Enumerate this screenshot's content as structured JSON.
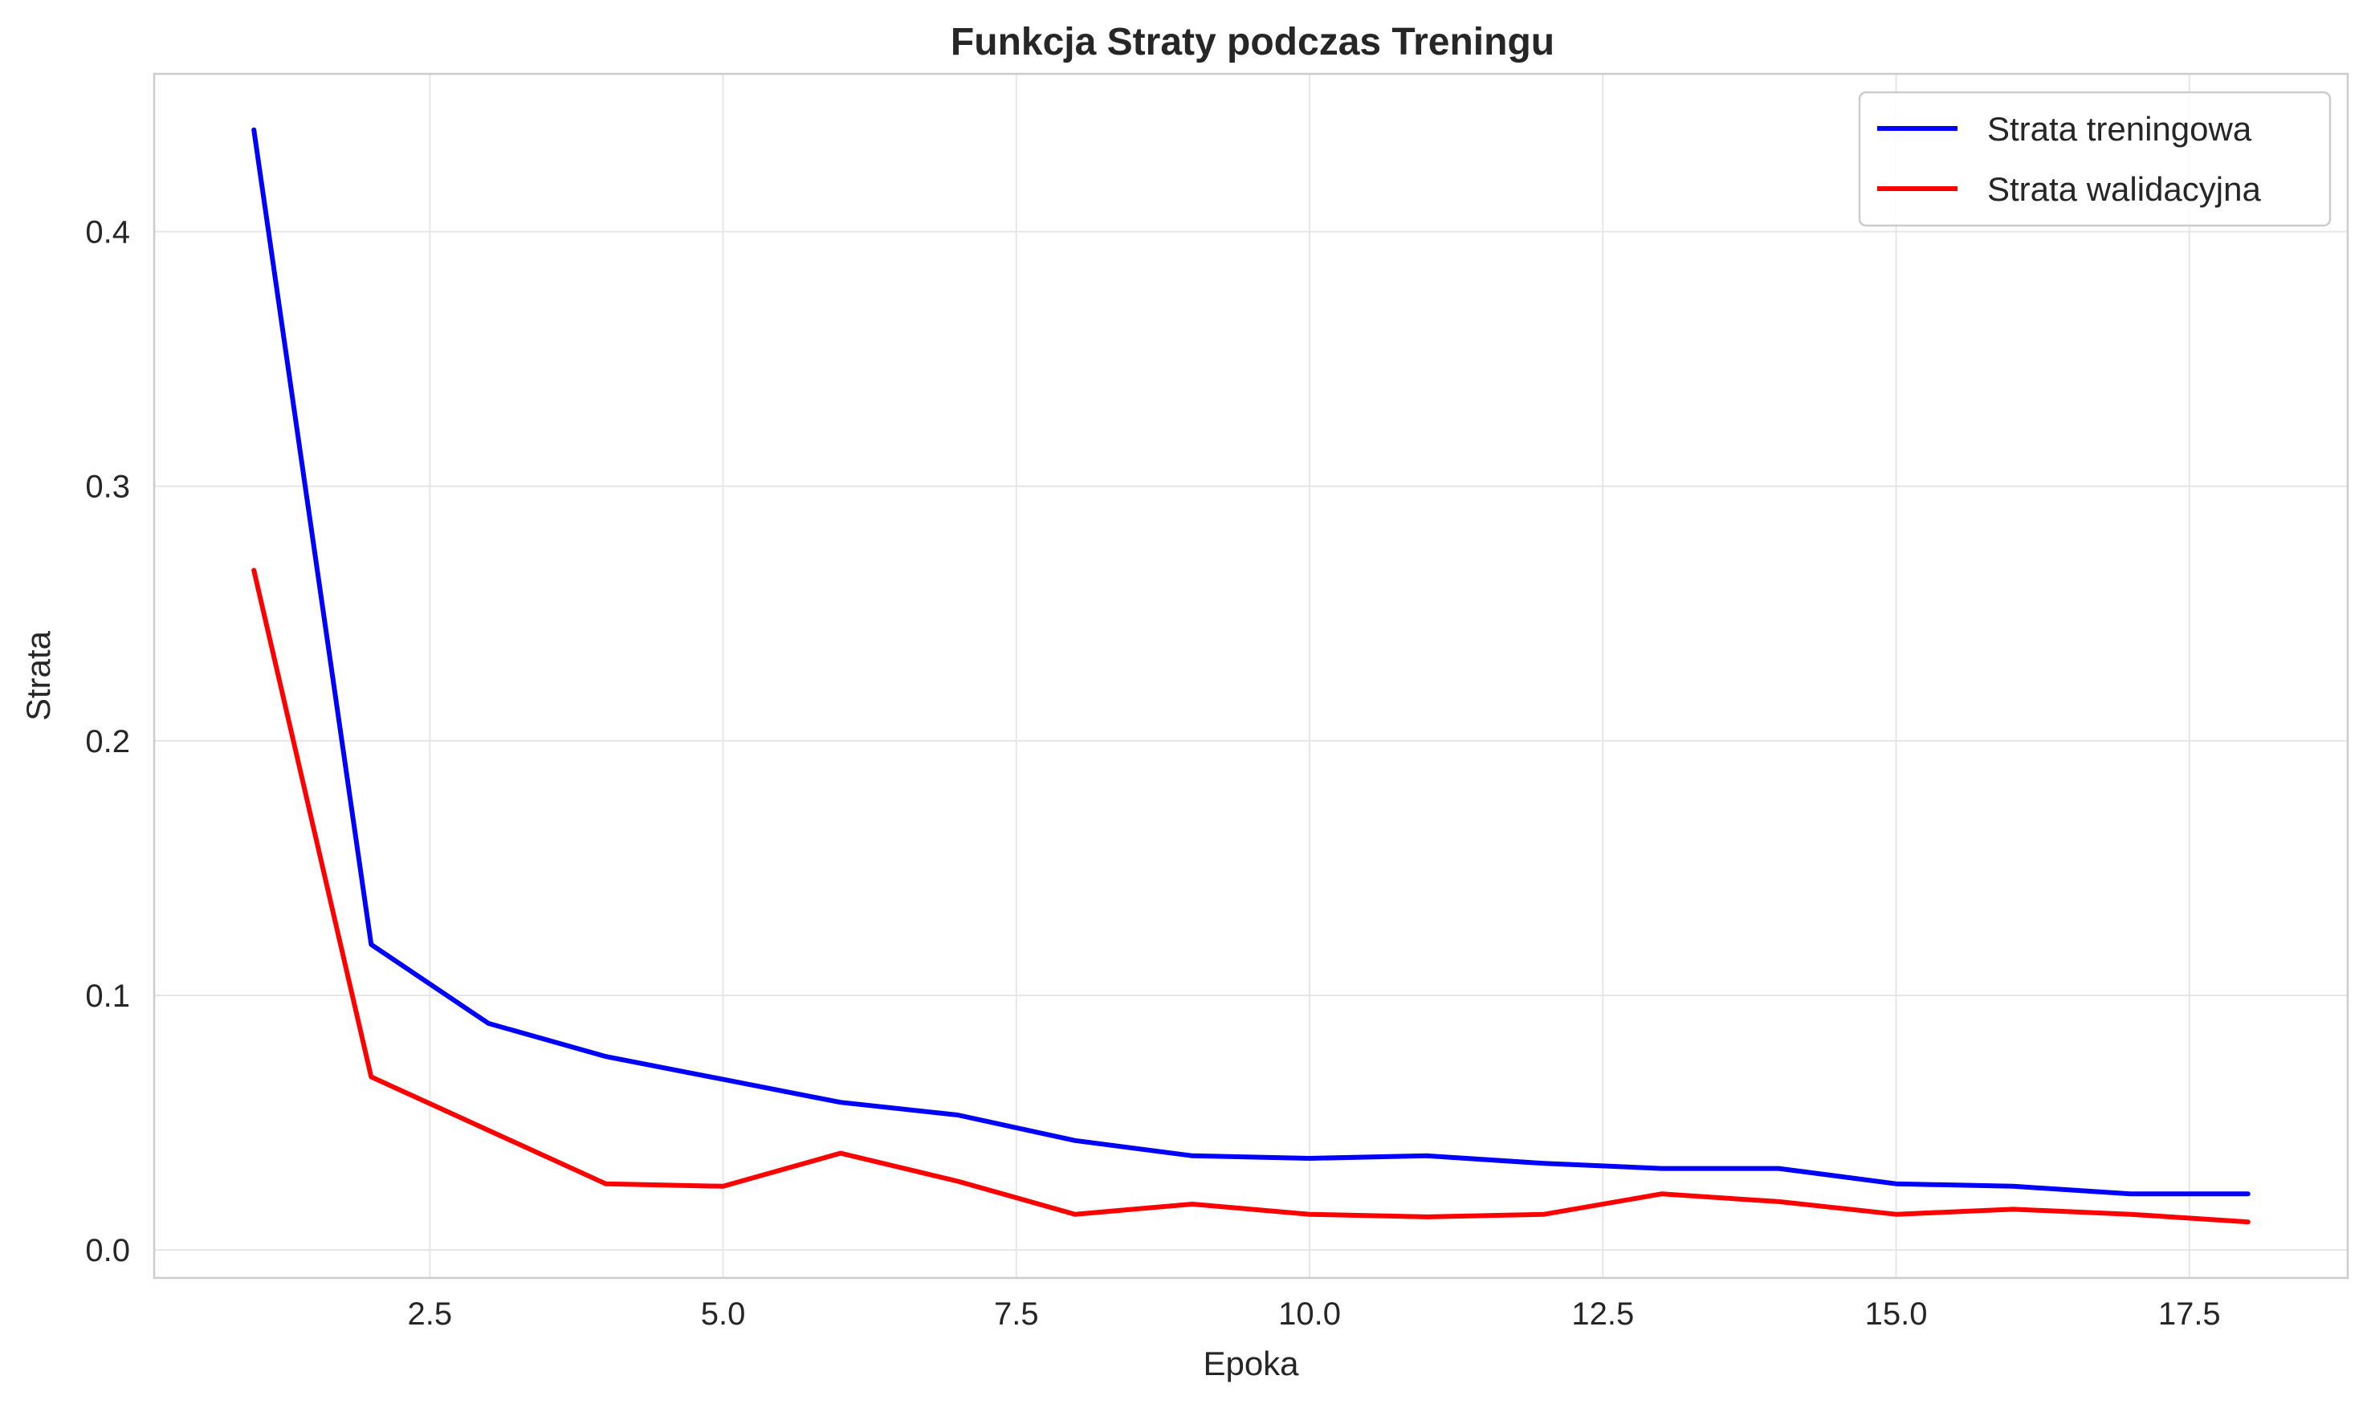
{
  "chart_data": {
    "type": "line",
    "title": "Funkcja Straty podczas Treningu",
    "xlabel": "Epoka",
    "ylabel": "Strata",
    "xlim": [
      0.15,
      18.85
    ],
    "ylim": [
      -0.011,
      0.462
    ],
    "xticks": [
      2.5,
      5.0,
      7.5,
      10.0,
      12.5,
      15.0,
      17.5
    ],
    "xtick_labels": [
      "2.5",
      "5.0",
      "7.5",
      "10.0",
      "12.5",
      "15.0",
      "17.5"
    ],
    "yticks": [
      0.0,
      0.1,
      0.2,
      0.3,
      0.4
    ],
    "ytick_labels": [
      "0.0",
      "0.1",
      "0.2",
      "0.3",
      "0.4"
    ],
    "grid": true,
    "legend_position": "top-right",
    "x": [
      1,
      2,
      3,
      4,
      5,
      6,
      7,
      8,
      9,
      10,
      11,
      12,
      13,
      14,
      15,
      16,
      17,
      18
    ],
    "series": [
      {
        "name": "Strata treningowa",
        "color": "#0000ff",
        "values": [
          0.44,
          0.12,
          0.089,
          0.076,
          0.067,
          0.058,
          0.053,
          0.043,
          0.037,
          0.036,
          0.037,
          0.034,
          0.032,
          0.032,
          0.026,
          0.025,
          0.022,
          0.022
        ]
      },
      {
        "name": "Strata walidacyjna",
        "color": "#ff0000",
        "values": [
          0.267,
          0.068,
          0.047,
          0.026,
          0.025,
          0.038,
          0.027,
          0.014,
          0.018,
          0.014,
          0.013,
          0.014,
          0.022,
          0.019,
          0.014,
          0.016,
          0.014,
          0.011
        ]
      }
    ]
  }
}
